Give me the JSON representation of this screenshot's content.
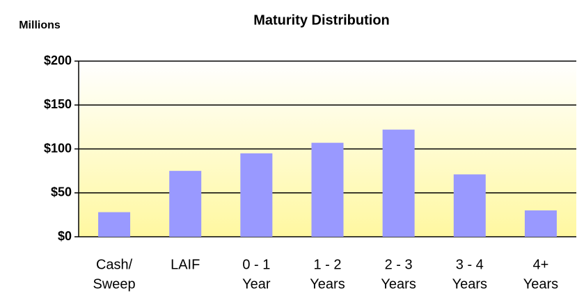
{
  "chart_data": {
    "type": "bar",
    "title": "Maturity Distribution",
    "y_label": "Millions",
    "categories": [
      [
        "Cash/",
        "Sweep"
      ],
      [
        "LAIF"
      ],
      [
        "0 - 1",
        "Year"
      ],
      [
        "1 - 2",
        "Years"
      ],
      [
        "2 - 3",
        "Years"
      ],
      [
        "3 - 4",
        "Years"
      ],
      [
        "4+",
        "Years"
      ]
    ],
    "values": [
      28,
      75,
      95,
      107,
      122,
      71,
      30
    ],
    "color": "#9999ff",
    "ylim": [
      0,
      200
    ],
    "yticks": [
      {
        "value": 0,
        "label": "$0"
      },
      {
        "value": 50,
        "label": "$50"
      },
      {
        "value": 100,
        "label": "$100"
      },
      {
        "value": 150,
        "label": "$150"
      },
      {
        "value": 200,
        "label": "$200"
      }
    ],
    "grid": true
  }
}
